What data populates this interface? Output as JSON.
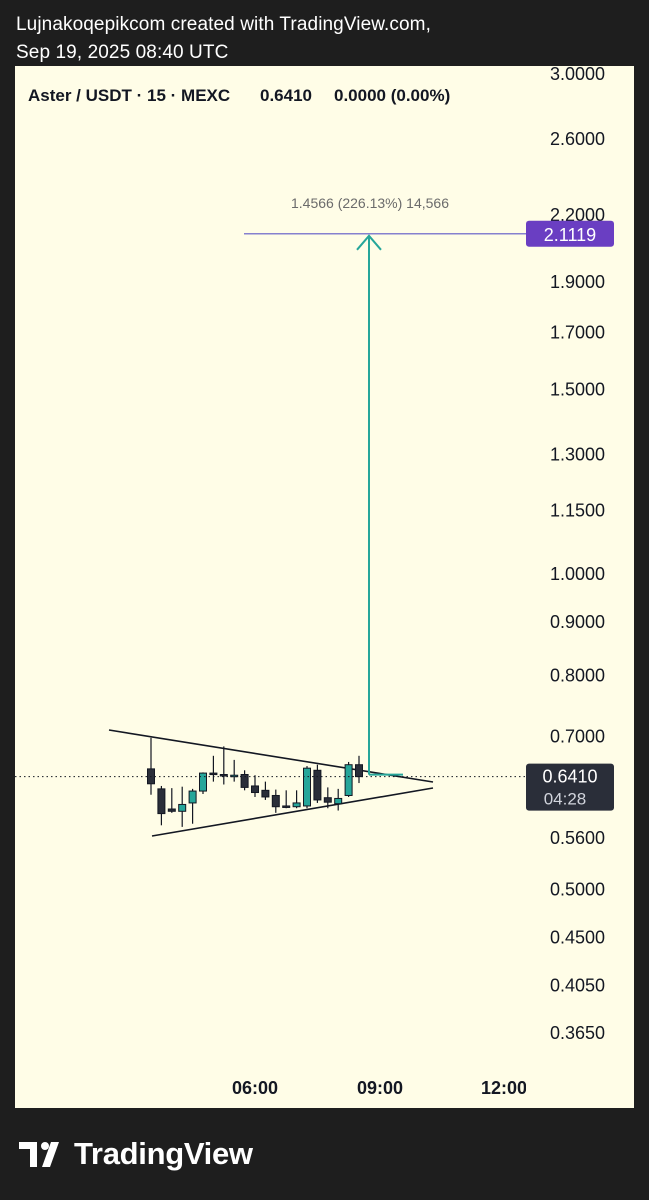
{
  "header": {
    "line1": "Lujnakoqepikcom created with TradingView.com,",
    "line2": "Sep 19, 2025 08:40 UTC"
  },
  "footer": {
    "brand": "TradingView"
  },
  "colors": {
    "background": "#1e1e1e",
    "plot_bg": "#fffde7",
    "up": "#26a69a",
    "down": "#2a2e39",
    "measure": "#5e57c7",
    "measure_label_bg": "#6a3ec2"
  },
  "chart_data": {
    "type": "candlestick",
    "title": "Aster / USDT · 15 · MEXC",
    "last": "0.6410",
    "change": "0.0000 (0.00%)",
    "y_scale": "log",
    "y_ticks": [
      "3.0000",
      "2.6000",
      "2.2000",
      "1.9000",
      "1.7000",
      "1.5000",
      "1.3000",
      "1.1500",
      "1.0000",
      "0.9000",
      "0.8000",
      "0.7000",
      "0.5600",
      "0.5000",
      "0.4500",
      "0.4050",
      "0.3650"
    ],
    "x_ticks": [
      "06:00",
      "09:00",
      "12:00"
    ],
    "price_label": "0.6410",
    "countdown": "04:28",
    "target_label": "2.1119",
    "measure_text": "1.4566 (226.13%) 14,566",
    "candles": [
      {
        "o": 0.652,
        "h": 0.698,
        "l": 0.616,
        "c": 0.631
      },
      {
        "o": 0.624,
        "h": 0.628,
        "l": 0.576,
        "c": 0.591
      },
      {
        "o": 0.597,
        "h": 0.625,
        "l": 0.592,
        "c": 0.594
      },
      {
        "o": 0.594,
        "h": 0.627,
        "l": 0.574,
        "c": 0.603
      },
      {
        "o": 0.605,
        "h": 0.624,
        "l": 0.578,
        "c": 0.621
      },
      {
        "o": 0.621,
        "h": 0.647,
        "l": 0.617,
        "c": 0.646
      },
      {
        "o": 0.646,
        "h": 0.671,
        "l": 0.634,
        "c": 0.645
      },
      {
        "o": 0.644,
        "h": 0.685,
        "l": 0.63,
        "c": 0.642
      },
      {
        "o": 0.643,
        "h": 0.665,
        "l": 0.634,
        "c": 0.643
      },
      {
        "o": 0.644,
        "h": 0.65,
        "l": 0.622,
        "c": 0.626
      },
      {
        "o": 0.628,
        "h": 0.643,
        "l": 0.613,
        "c": 0.619
      },
      {
        "o": 0.622,
        "h": 0.634,
        "l": 0.609,
        "c": 0.613
      },
      {
        "o": 0.615,
        "h": 0.623,
        "l": 0.592,
        "c": 0.6
      },
      {
        "o": 0.601,
        "h": 0.622,
        "l": 0.598,
        "c": 0.6
      },
      {
        "o": 0.6,
        "h": 0.622,
        "l": 0.598,
        "c": 0.605
      },
      {
        "o": 0.601,
        "h": 0.656,
        "l": 0.598,
        "c": 0.653
      },
      {
        "o": 0.65,
        "h": 0.658,
        "l": 0.605,
        "c": 0.609
      },
      {
        "o": 0.612,
        "h": 0.626,
        "l": 0.598,
        "c": 0.606
      },
      {
        "o": 0.604,
        "h": 0.624,
        "l": 0.595,
        "c": 0.611
      },
      {
        "o": 0.615,
        "h": 0.662,
        "l": 0.613,
        "c": 0.658
      },
      {
        "o": 0.658,
        "h": 0.671,
        "l": 0.632,
        "c": 0.641
      }
    ]
  }
}
